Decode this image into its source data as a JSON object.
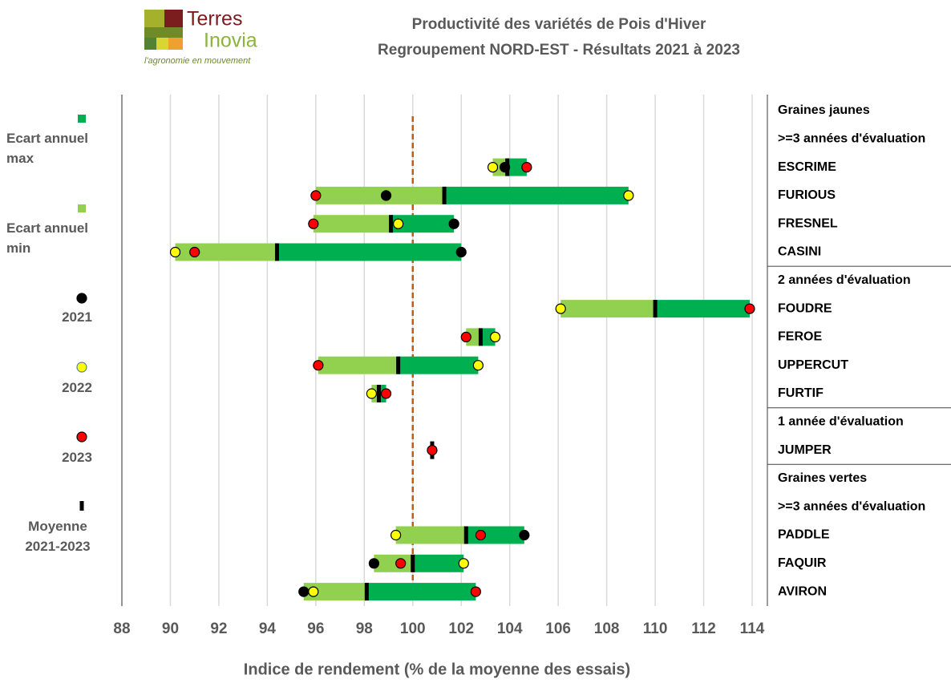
{
  "logo": {
    "name_top": "Terres",
    "name_bottom": "Inovia",
    "tagline": "l'agronomie en mouvement"
  },
  "chart_data": {
    "type": "range-dot",
    "title": "Productivité des variétés de Pois d'Hiver",
    "subtitle": "Regroupement NORD-EST - Résultats 2021 à 2023",
    "x_label": "Indice de rendement (% de la moyenne des essais)",
    "xlim": [
      88,
      114
    ],
    "xticks": [
      88,
      90,
      92,
      94,
      96,
      98,
      100,
      102,
      104,
      106,
      108,
      110,
      112,
      114
    ],
    "grid": true,
    "reference_line": 100,
    "reference_color": "#c55a11",
    "categories": [
      "Graines jaunes",
      ">=3 années d'évaluation",
      "ESCRIME",
      "FURIOUS",
      "FRESNEL",
      "CASINI",
      "2 années d'évaluation",
      "FOUDRE",
      "FEROE",
      "UPPERCUT",
      "FURTIF",
      "1 année d'évaluation",
      "JUMPER",
      "Graines vertes",
      ">=3 années d'évaluation",
      "PADDLE",
      "FAQUIR",
      "AVIRON"
    ],
    "series": [
      {
        "name": "Ecart annuel max",
        "marker": "bar-end",
        "color": "#00b050",
        "values": [
          null,
          null,
          104.7,
          108.9,
          101.7,
          102.0,
          null,
          113.9,
          103.4,
          102.7,
          98.9,
          null,
          null,
          null,
          null,
          104.6,
          102.1,
          102.6
        ]
      },
      {
        "name": "Ecart annuel min",
        "marker": "bar-start",
        "color": "#92d050",
        "values": [
          null,
          null,
          103.3,
          96.0,
          95.9,
          90.2,
          null,
          106.1,
          102.2,
          96.1,
          98.3,
          null,
          null,
          null,
          null,
          99.3,
          98.4,
          95.5
        ]
      },
      {
        "name": "2021",
        "marker": "dot",
        "color": "#000000",
        "values": [
          null,
          null,
          103.8,
          98.9,
          101.7,
          102.0,
          null,
          null,
          null,
          null,
          null,
          null,
          null,
          null,
          null,
          104.6,
          98.4,
          95.5
        ]
      },
      {
        "name": "2022",
        "marker": "dot",
        "color": "#ffff00",
        "values": [
          null,
          null,
          103.3,
          108.9,
          99.4,
          90.2,
          null,
          106.1,
          103.4,
          102.7,
          98.3,
          null,
          null,
          null,
          null,
          99.3,
          102.1,
          95.9
        ]
      },
      {
        "name": "2023",
        "marker": "dot",
        "color": "#ff0000",
        "values": [
          null,
          null,
          104.7,
          96.0,
          95.9,
          91.0,
          null,
          113.9,
          102.2,
          96.1,
          98.9,
          null,
          100.8,
          null,
          null,
          102.8,
          99.5,
          102.6
        ]
      },
      {
        "name": "Moyenne 2021-2023",
        "marker": "tick",
        "color": "#000000",
        "values": [
          null,
          null,
          103.9,
          101.3,
          99.1,
          94.4,
          null,
          110.0,
          102.8,
          99.4,
          98.6,
          null,
          100.8,
          null,
          null,
          102.2,
          100.0,
          98.1
        ]
      }
    ]
  }
}
